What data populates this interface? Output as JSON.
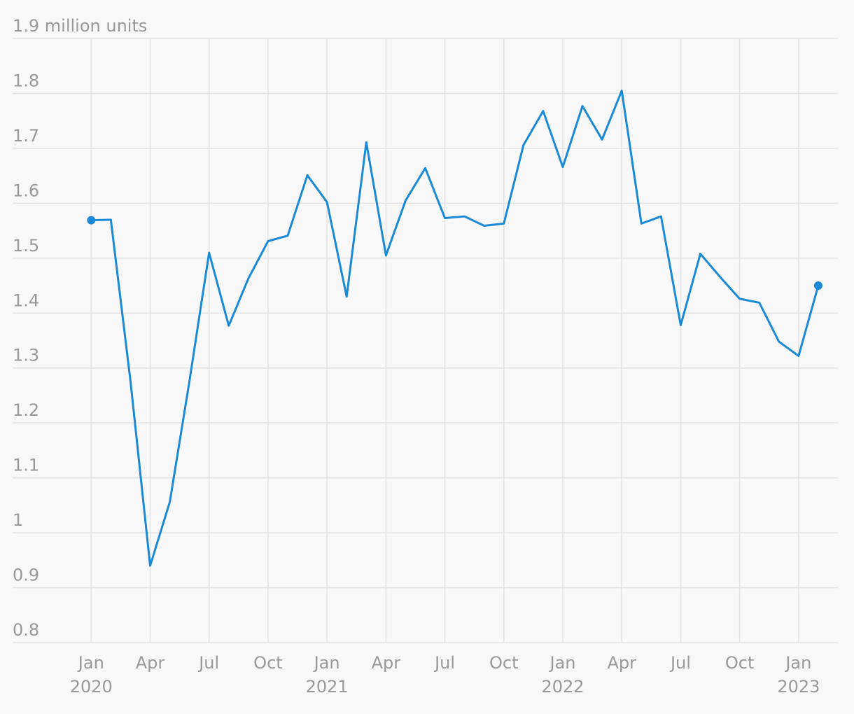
{
  "chart_data": {
    "type": "line",
    "x": [
      "2020-01",
      "2020-02",
      "2020-03",
      "2020-04",
      "2020-05",
      "2020-06",
      "2020-07",
      "2020-08",
      "2020-09",
      "2020-10",
      "2020-11",
      "2020-12",
      "2021-01",
      "2021-02",
      "2021-03",
      "2021-04",
      "2021-05",
      "2021-06",
      "2021-07",
      "2021-08",
      "2021-09",
      "2021-10",
      "2021-11",
      "2021-12",
      "2022-01",
      "2022-02",
      "2022-03",
      "2022-04",
      "2022-05",
      "2022-06",
      "2022-07",
      "2022-08",
      "2022-09",
      "2022-10",
      "2022-11",
      "2022-12",
      "2023-01",
      "2023-02"
    ],
    "series": [
      {
        "color": "#1b8ad6",
        "values": [
          1.569,
          1.57,
          1.276,
          0.94,
          1.056,
          1.276,
          1.51,
          1.377,
          1.463,
          1.531,
          1.541,
          1.651,
          1.602,
          1.43,
          1.711,
          1.505,
          1.605,
          1.664,
          1.573,
          1.576,
          1.559,
          1.563,
          1.706,
          1.768,
          1.666,
          1.777,
          1.716,
          1.805,
          1.563,
          1.576,
          1.378,
          1.508,
          1.466,
          1.426,
          1.419,
          1.348,
          1.322,
          1.45
        ]
      }
    ],
    "endpoint_markers": true,
    "ylim": [
      0.8,
      1.9
    ],
    "yticks": [
      0.8,
      0.9,
      1,
      1.1,
      1.2,
      1.3,
      1.4,
      1.5,
      1.6,
      1.7,
      1.8,
      {
        "value": 1.9,
        "label": "1.9 million units"
      }
    ],
    "xlim": [
      "2019-09",
      "2023-03"
    ],
    "xticks": [
      {
        "value": "2020-01",
        "label": "Jan"
      },
      {
        "value": "2020-04",
        "label": "Apr"
      },
      {
        "value": "2020-07",
        "label": "Jul"
      },
      {
        "value": "2020-10",
        "label": "Oct"
      },
      {
        "value": "2021-01",
        "label": "Jan"
      },
      {
        "value": "2021-04",
        "label": "Apr"
      },
      {
        "value": "2021-07",
        "label": "Jul"
      },
      {
        "value": "2021-10",
        "label": "Oct"
      },
      {
        "value": "2022-01",
        "label": "Jan"
      },
      {
        "value": "2022-04",
        "label": "Apr"
      },
      {
        "value": "2022-07",
        "label": "Jul"
      },
      {
        "value": "2022-10",
        "label": "Oct"
      },
      {
        "value": "2023-01",
        "label": "Jan"
      }
    ],
    "xtick_years": [
      {
        "value": "2020-01",
        "label": "2020"
      },
      {
        "value": "2021-01",
        "label": "2021"
      },
      {
        "value": "2022-01",
        "label": "2022"
      },
      {
        "value": "2023-01",
        "label": "2023"
      }
    ],
    "grid": true
  }
}
